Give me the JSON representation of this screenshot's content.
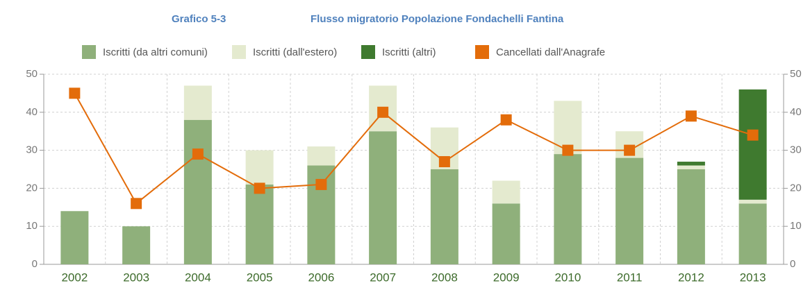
{
  "chart_data": {
    "type": "bar",
    "title_label": "Grafico 5-3",
    "title": "Flusso migratorio Popolazione Fondachelli Fantina",
    "categories": [
      "2002",
      "2003",
      "2004",
      "2005",
      "2006",
      "2007",
      "2008",
      "2009",
      "2010",
      "2011",
      "2012",
      "2013"
    ],
    "series": [
      {
        "name": "Iscritti (da altri comuni)",
        "color": "#8fb07b",
        "values": [
          14,
          10,
          38,
          21,
          26,
          35,
          25,
          16,
          29,
          28,
          25,
          16
        ]
      },
      {
        "name": "Iscritti (dall'estero)",
        "color": "#e4eacf",
        "values": [
          0,
          0,
          9,
          9,
          5,
          12,
          11,
          6,
          14,
          7,
          1,
          1
        ]
      },
      {
        "name": "Iscritti (altri)",
        "color": "#3f7a2f",
        "values": [
          0,
          0,
          0,
          0,
          0,
          0,
          0,
          0,
          0,
          0,
          1,
          29
        ]
      },
      {
        "name": "Cancellati dall'Anagrafe",
        "color": "#e36c0a",
        "type": "line",
        "values": [
          45,
          16,
          29,
          20,
          21,
          40,
          27,
          38,
          30,
          30,
          39,
          34
        ]
      }
    ],
    "ylim": [
      0,
      50
    ],
    "yticks": [
      0,
      10,
      20,
      30,
      40,
      50
    ],
    "y2lim": [
      0,
      50
    ],
    "y2ticks": [
      0,
      10,
      20,
      30,
      40,
      50
    ],
    "stacked": true,
    "grid": true,
    "legend": "top"
  }
}
